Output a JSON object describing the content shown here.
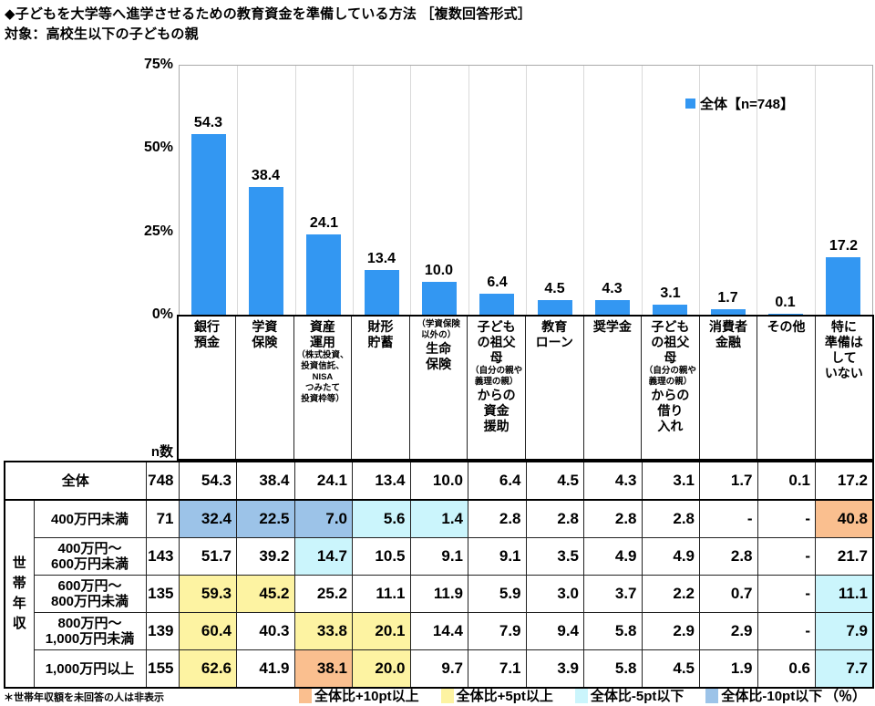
{
  "header": {
    "title": "◆子どもを大学等へ進学させるための教育資金を準備している方法 ［複数回答形式］",
    "subtitle": "対象：高校生以下の子どもの親"
  },
  "chart_data": {
    "type": "bar",
    "title": "子どもを大学等へ進学させるための教育資金を準備している方法（複数回答形式）",
    "legend": "全体【n=748】",
    "legend_position": "top-right",
    "bar_color": "#3397F2",
    "gridline_color": "#d9d9d9",
    "ylim": [
      0,
      75
    ],
    "yticks": [
      {
        "value": 75,
        "label": "75%"
      },
      {
        "value": 50,
        "label": "50%"
      },
      {
        "value": 25,
        "label": "25%"
      },
      {
        "value": 0,
        "label": "0%"
      }
    ],
    "categories": [
      "銀行預金",
      "学資保険",
      "資産運用（株式投資、投資信託、NISAつみたて投資枠等）",
      "財形貯蓄",
      "（学資保険以外の）生命保険",
      "子どもの祖父母（自分の親や義理の親）からの資金援助",
      "教育ローン",
      "奨学金",
      "子どもの祖父母（自分の親や義理の親）からの借り入れ",
      "消費者金融",
      "その他",
      "特に準備はしていない"
    ],
    "category_lines": [
      {
        "lines": [
          {
            "t": "銀行",
            "s": 0
          },
          {
            "t": "預金",
            "s": 0
          }
        ]
      },
      {
        "lines": [
          {
            "t": "学資",
            "s": 0
          },
          {
            "t": "保険",
            "s": 0
          }
        ]
      },
      {
        "lines": [
          {
            "t": "資産",
            "s": 0
          },
          {
            "t": "運用",
            "s": 0
          },
          {
            "t": "（株式投資、",
            "s": 1
          },
          {
            "t": "投資信託、",
            "s": 1
          },
          {
            "t": "NISA",
            "s": 1
          },
          {
            "t": "つみたて",
            "s": 1
          },
          {
            "t": "投資枠等）",
            "s": 1
          }
        ]
      },
      {
        "lines": [
          {
            "t": "財形",
            "s": 0
          },
          {
            "t": "貯蓄",
            "s": 0
          }
        ]
      },
      {
        "lines": [
          {
            "t": "（学資保険",
            "s": 1
          },
          {
            "t": "以外の）",
            "s": 1
          },
          {
            "t": "生命",
            "s": 0
          },
          {
            "t": "保険",
            "s": 0
          }
        ]
      },
      {
        "lines": [
          {
            "t": "子ども",
            "s": 0
          },
          {
            "t": "の祖父",
            "s": 0
          },
          {
            "t": "母",
            "s": 0
          },
          {
            "t": "（自分の親や",
            "s": 1
          },
          {
            "t": "義理の親）",
            "s": 1
          },
          {
            "t": "からの",
            "s": 0
          },
          {
            "t": "資金",
            "s": 0
          },
          {
            "t": "援助",
            "s": 0
          }
        ]
      },
      {
        "lines": [
          {
            "t": "教育",
            "s": 0
          },
          {
            "t": "ローン",
            "s": 0
          }
        ]
      },
      {
        "lines": [
          {
            "t": "奨学金",
            "s": 0
          }
        ]
      },
      {
        "lines": [
          {
            "t": "子ども",
            "s": 0
          },
          {
            "t": "の祖父",
            "s": 0
          },
          {
            "t": "母",
            "s": 0
          },
          {
            "t": "（自分の親や",
            "s": 1
          },
          {
            "t": "義理の親）",
            "s": 1
          },
          {
            "t": "からの",
            "s": 0
          },
          {
            "t": "借り",
            "s": 0
          },
          {
            "t": "入れ",
            "s": 0
          }
        ]
      },
      {
        "lines": [
          {
            "t": "消費者",
            "s": 0
          },
          {
            "t": "金融",
            "s": 0
          }
        ]
      },
      {
        "lines": [
          {
            "t": "その他",
            "s": 0
          }
        ]
      },
      {
        "lines": [
          {
            "t": "特に",
            "s": 0
          },
          {
            "t": "準備は",
            "s": 0
          },
          {
            "t": "して",
            "s": 0
          },
          {
            "t": "いない",
            "s": 0
          }
        ]
      }
    ],
    "values": [
      54.3,
      38.4,
      24.1,
      13.4,
      10.0,
      6.4,
      4.5,
      4.3,
      3.1,
      1.7,
      0.1,
      17.2
    ],
    "labels": [
      "54.3",
      "38.4",
      "24.1",
      "13.4",
      "10.0",
      "6.4",
      "4.5",
      "4.3",
      "3.1",
      "1.7",
      "0.1",
      "17.2"
    ]
  },
  "table": {
    "n_header": "n数",
    "overall": {
      "label": "全体",
      "n": "748",
      "values": [
        "54.3",
        "38.4",
        "24.1",
        "13.4",
        "10.0",
        "6.4",
        "4.5",
        "4.3",
        "3.1",
        "1.7",
        "0.1",
        "17.2"
      ]
    },
    "group_label": "世帯年収",
    "income_rows": [
      {
        "label_lines": [
          "400万円未満"
        ],
        "n": "71",
        "values": [
          "32.4",
          "22.5",
          "7.0",
          "5.6",
          "1.4",
          "2.8",
          "2.8",
          "2.8",
          "2.8",
          "-",
          "-",
          "40.8"
        ],
        "marks": [
          "minus10",
          "minus10",
          "minus10",
          "minus5",
          "minus5",
          "",
          "",
          "",
          "",
          "",
          "",
          "plus10"
        ]
      },
      {
        "label_lines": [
          "400万円～",
          "600万円未満"
        ],
        "n": "143",
        "values": [
          "51.7",
          "39.2",
          "14.7",
          "10.5",
          "9.1",
          "9.1",
          "3.5",
          "4.9",
          "4.9",
          "2.8",
          "-",
          "21.7"
        ],
        "marks": [
          "",
          "",
          "minus5",
          "",
          "",
          "",
          "",
          "",
          "",
          "",
          "",
          ""
        ]
      },
      {
        "label_lines": [
          "600万円～",
          "800万円未満"
        ],
        "n": "135",
        "values": [
          "59.3",
          "45.2",
          "25.2",
          "11.1",
          "11.9",
          "5.9",
          "3.0",
          "3.7",
          "2.2",
          "0.7",
          "-",
          "11.1"
        ],
        "marks": [
          "plus5",
          "plus5",
          "",
          "",
          "",
          "",
          "",
          "",
          "",
          "",
          "",
          "minus5"
        ]
      },
      {
        "label_lines": [
          "800万円～",
          "1,000万円未満"
        ],
        "n": "139",
        "values": [
          "60.4",
          "40.3",
          "33.8",
          "20.1",
          "14.4",
          "7.9",
          "9.4",
          "5.8",
          "2.9",
          "2.9",
          "-",
          "7.9"
        ],
        "marks": [
          "plus5",
          "",
          "plus5",
          "plus5",
          "",
          "",
          "",
          "",
          "",
          "",
          "",
          "minus5"
        ]
      },
      {
        "label_lines": [
          "1,000万円以上"
        ],
        "n": "155",
        "values": [
          "62.6",
          "41.9",
          "38.1",
          "20.0",
          "9.7",
          "7.1",
          "3.9",
          "5.8",
          "4.5",
          "1.9",
          "0.6",
          "7.7"
        ],
        "marks": [
          "plus5",
          "",
          "plus10",
          "plus5",
          "",
          "",
          "",
          "",
          "",
          "",
          "",
          "minus5"
        ]
      }
    ]
  },
  "footer": {
    "note": "＊世帯年収額を未回答の人は非表示",
    "legend": [
      {
        "label": "全体比+10pt以上",
        "mark": "plus10"
      },
      {
        "label": "全体比+5pt以上",
        "mark": "plus5"
      },
      {
        "label": "全体比-5pt以下",
        "mark": "minus5"
      },
      {
        "label": "全体比-10pt以下",
        "mark": "minus10"
      }
    ],
    "unit": "（％）"
  },
  "colors": {
    "bar": "#3397F2",
    "plus10": "#FABF8F",
    "plus5": "#FDF3A2",
    "minus5": "#CBF5FC",
    "minus10": "#9CC3E8",
    "gridline": "#d9d9d9"
  }
}
